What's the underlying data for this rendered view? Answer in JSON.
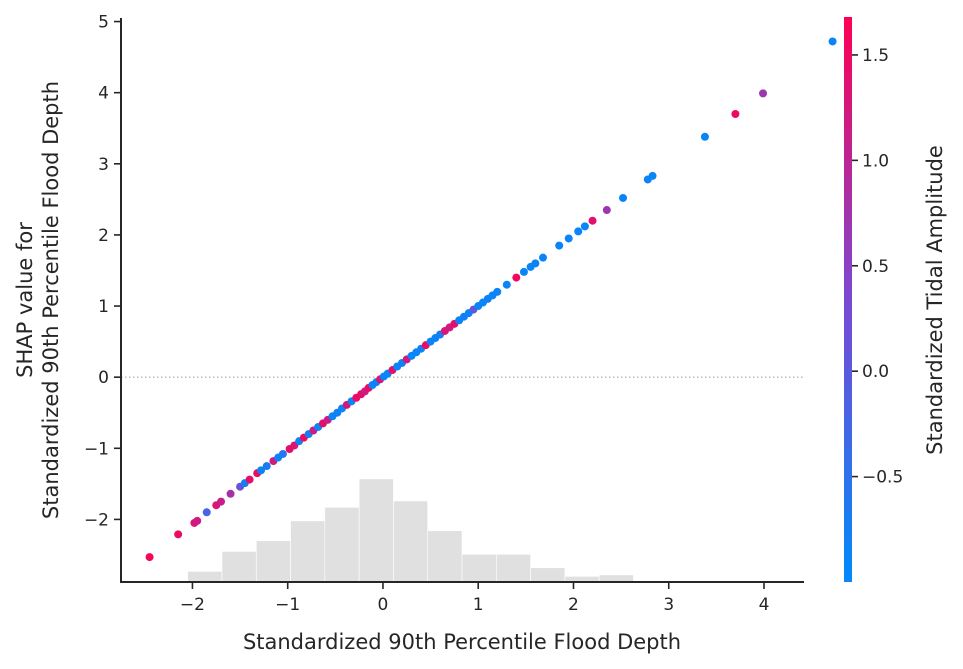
{
  "chart_data": {
    "type": "scatter",
    "title": "",
    "xlabel": "Standardized 90th Percentile Flood Depth",
    "ylabel": [
      "SHAP value for",
      "Standardized 90th Percentile Flood Depth"
    ],
    "xlim": [
      -2.75,
      4.42
    ],
    "ylim": [
      -2.88,
      5.05
    ],
    "x_ticks": [
      -2,
      -1,
      0,
      1,
      2,
      3,
      4
    ],
    "x_tick_labels": [
      "−2",
      "−1",
      "0",
      "1",
      "2",
      "3",
      "4"
    ],
    "y_ticks": [
      -2,
      -1,
      0,
      1,
      2,
      3,
      4,
      5
    ],
    "y_tick_labels": [
      "−2",
      "−1",
      "0",
      "1",
      "2",
      "3",
      "4",
      "5"
    ],
    "zero_line": true,
    "grid": false,
    "colorbar": {
      "label": "Standardized Tidal Amplitude",
      "min": -1.0,
      "max": 1.68,
      "ticks": [
        -0.5,
        0.0,
        0.5,
        1.0,
        1.5
      ],
      "tick_labels": [
        "−0.5",
        "0.0",
        "0.5",
        "1.0",
        "1.5"
      ],
      "colors": [
        "#008afb",
        "#7a49d2",
        "#ff0052"
      ]
    },
    "histogram": {
      "bins": [
        -2.05,
        -1.69,
        -1.33,
        -0.97,
        -0.61,
        -0.25,
        0.11,
        0.47,
        0.83,
        1.19,
        1.55,
        1.91,
        2.27,
        2.63
      ],
      "heights": [
        0.15,
        0.43,
        0.58,
        0.86,
        1.05,
        1.45,
        1.14,
        0.72,
        0.39,
        0.39,
        0.2,
        0.08,
        0.1
      ],
      "color": "#e0e0e0"
    },
    "points": [
      {
        "x": -2.45,
        "y": -2.53,
        "c": 1.6
      },
      {
        "x": -2.15,
        "y": -2.21,
        "c": 1.5
      },
      {
        "x": -1.98,
        "y": -2.05,
        "c": 1.3
      },
      {
        "x": -1.95,
        "y": -2.02,
        "c": 1.2
      },
      {
        "x": -1.85,
        "y": -1.9,
        "c": -0.2
      },
      {
        "x": -1.75,
        "y": -1.8,
        "c": 1.3
      },
      {
        "x": -1.7,
        "y": -1.75,
        "c": 1.1
      },
      {
        "x": -1.6,
        "y": -1.64,
        "c": 0.8
      },
      {
        "x": -1.5,
        "y": -1.54,
        "c": 0.2
      },
      {
        "x": -1.45,
        "y": -1.49,
        "c": -0.8
      },
      {
        "x": -1.4,
        "y": -1.44,
        "c": 1.4
      },
      {
        "x": -1.32,
        "y": -1.35,
        "c": 1.5
      },
      {
        "x": -1.28,
        "y": -1.31,
        "c": -0.9
      },
      {
        "x": -1.22,
        "y": -1.25,
        "c": -0.7
      },
      {
        "x": -1.15,
        "y": -1.18,
        "c": 1.2
      },
      {
        "x": -1.1,
        "y": -1.13,
        "c": -0.9
      },
      {
        "x": -1.05,
        "y": -1.08,
        "c": -0.6
      },
      {
        "x": -0.98,
        "y": -1.01,
        "c": 1.4
      },
      {
        "x": -0.93,
        "y": -0.96,
        "c": 1.3
      },
      {
        "x": -0.88,
        "y": -0.9,
        "c": -0.9
      },
      {
        "x": -0.83,
        "y": -0.85,
        "c": 1.5
      },
      {
        "x": -0.78,
        "y": -0.8,
        "c": -0.8
      },
      {
        "x": -0.73,
        "y": -0.75,
        "c": 1.1
      },
      {
        "x": -0.68,
        "y": -0.7,
        "c": -0.9
      },
      {
        "x": -0.63,
        "y": -0.65,
        "c": 1.4
      },
      {
        "x": -0.58,
        "y": -0.6,
        "c": 1.2
      },
      {
        "x": -0.53,
        "y": -0.55,
        "c": -0.9
      },
      {
        "x": -0.48,
        "y": -0.5,
        "c": -0.8
      },
      {
        "x": -0.43,
        "y": -0.44,
        "c": -0.9
      },
      {
        "x": -0.38,
        "y": -0.39,
        "c": 1.3
      },
      {
        "x": -0.33,
        "y": -0.34,
        "c": -0.9
      },
      {
        "x": -0.28,
        "y": -0.29,
        "c": 1.5
      },
      {
        "x": -0.23,
        "y": -0.24,
        "c": 1.4
      },
      {
        "x": -0.19,
        "y": -0.2,
        "c": 1.2
      },
      {
        "x": -0.15,
        "y": -0.15,
        "c": 1.5
      },
      {
        "x": -0.11,
        "y": -0.11,
        "c": -0.9
      },
      {
        "x": -0.07,
        "y": -0.07,
        "c": -0.8
      },
      {
        "x": -0.03,
        "y": -0.03,
        "c": 1.3
      },
      {
        "x": 0.01,
        "y": 0.01,
        "c": -0.9
      },
      {
        "x": 0.05,
        "y": 0.05,
        "c": -0.9
      },
      {
        "x": 0.1,
        "y": 0.1,
        "c": 1.4
      },
      {
        "x": 0.15,
        "y": 0.15,
        "c": -0.9
      },
      {
        "x": 0.2,
        "y": 0.2,
        "c": -0.8
      },
      {
        "x": 0.25,
        "y": 0.25,
        "c": 1.2
      },
      {
        "x": 0.3,
        "y": 0.3,
        "c": -0.9
      },
      {
        "x": 0.35,
        "y": 0.35,
        "c": -0.9
      },
      {
        "x": 0.4,
        "y": 0.4,
        "c": -0.8
      },
      {
        "x": 0.45,
        "y": 0.45,
        "c": 1.5
      },
      {
        "x": 0.5,
        "y": 0.5,
        "c": -0.9
      },
      {
        "x": 0.55,
        "y": 0.55,
        "c": -0.9
      },
      {
        "x": 0.6,
        "y": 0.6,
        "c": -0.7
      },
      {
        "x": 0.65,
        "y": 0.65,
        "c": 1.3
      },
      {
        "x": 0.7,
        "y": 0.7,
        "c": 1.2
      },
      {
        "x": 0.75,
        "y": 0.75,
        "c": 1.4
      },
      {
        "x": 0.8,
        "y": 0.8,
        "c": -0.9
      },
      {
        "x": 0.85,
        "y": 0.85,
        "c": -0.8
      },
      {
        "x": 0.9,
        "y": 0.9,
        "c": -0.9
      },
      {
        "x": 0.95,
        "y": 0.95,
        "c": 0.1
      },
      {
        "x": 1.0,
        "y": 1.0,
        "c": -0.9
      },
      {
        "x": 1.05,
        "y": 1.05,
        "c": -0.9
      },
      {
        "x": 1.1,
        "y": 1.1,
        "c": -0.8
      },
      {
        "x": 1.15,
        "y": 1.15,
        "c": -0.9
      },
      {
        "x": 1.2,
        "y": 1.2,
        "c": -0.9
      },
      {
        "x": 1.3,
        "y": 1.3,
        "c": -0.9
      },
      {
        "x": 1.4,
        "y": 1.4,
        "c": 1.5
      },
      {
        "x": 1.48,
        "y": 1.48,
        "c": -0.9
      },
      {
        "x": 1.55,
        "y": 1.55,
        "c": -0.9
      },
      {
        "x": 1.6,
        "y": 1.6,
        "c": -0.8
      },
      {
        "x": 1.68,
        "y": 1.68,
        "c": -0.9
      },
      {
        "x": 1.85,
        "y": 1.85,
        "c": -0.9
      },
      {
        "x": 1.95,
        "y": 1.95,
        "c": -0.9
      },
      {
        "x": 2.05,
        "y": 2.05,
        "c": -0.9
      },
      {
        "x": 2.12,
        "y": 2.12,
        "c": -0.9
      },
      {
        "x": 2.2,
        "y": 2.2,
        "c": 1.4
      },
      {
        "x": 2.35,
        "y": 2.35,
        "c": 0.7
      },
      {
        "x": 2.52,
        "y": 2.52,
        "c": -0.9
      },
      {
        "x": 2.78,
        "y": 2.78,
        "c": -0.9
      },
      {
        "x": 2.83,
        "y": 2.83,
        "c": -0.9
      },
      {
        "x": 3.38,
        "y": 3.38,
        "c": -0.9
      },
      {
        "x": 3.7,
        "y": 3.7,
        "c": 1.5
      },
      {
        "x": 3.99,
        "y": 3.99,
        "c": 0.7
      },
      {
        "x": 4.72,
        "y": 4.72,
        "c": -0.9
      }
    ]
  }
}
